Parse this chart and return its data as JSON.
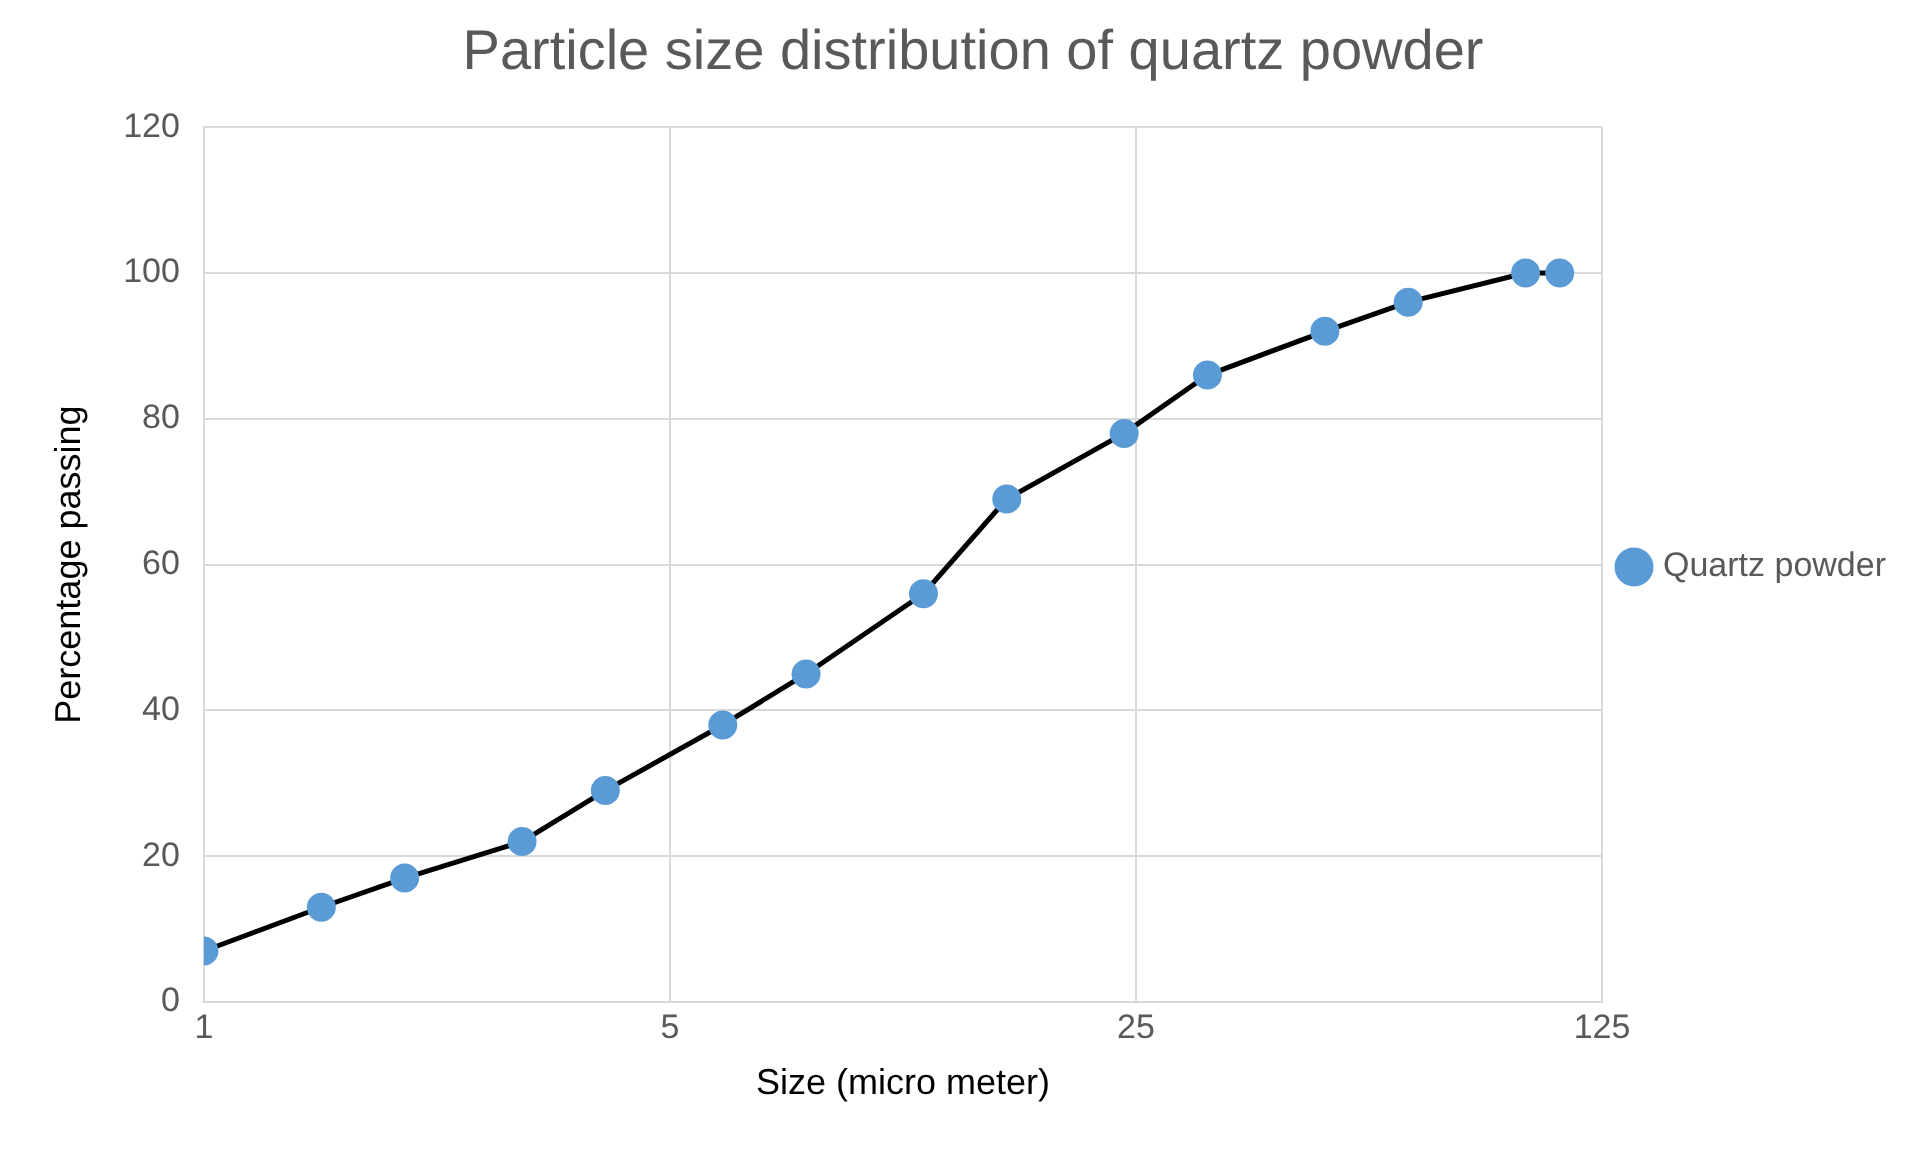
{
  "chart_data": {
    "type": "line",
    "title": "Particle size distribution of quartz powder",
    "xlabel": "Size (micro meter)",
    "ylabel": "Percentage passing",
    "x": [
      1,
      1.5,
      2,
      3,
      4,
      6,
      8,
      12,
      16,
      24,
      32,
      48,
      64,
      96,
      108
    ],
    "series": [
      {
        "name": "Quartz powder",
        "color": "#5b9bd5",
        "values": [
          7,
          13,
          17,
          22,
          29,
          38,
          45,
          56,
          69,
          78,
          86,
          92,
          96,
          100,
          100
        ]
      }
    ],
    "log": "x",
    "xlim": [
      1,
      125
    ],
    "xticks": [
      1,
      5,
      25,
      125
    ],
    "ylim": [
      0,
      120
    ],
    "yticks": [
      0,
      20,
      40,
      60,
      80,
      100,
      120
    ],
    "grid": true,
    "legend": "right",
    "marker": "circle",
    "line_style": "solid"
  }
}
